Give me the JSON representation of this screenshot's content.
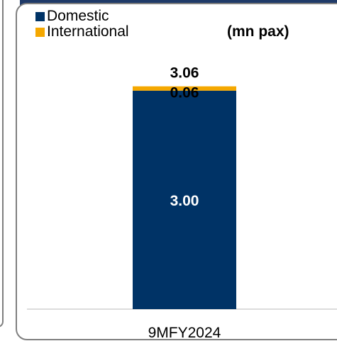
{
  "chart_data": {
    "type": "bar",
    "stacked": true,
    "categories": [
      "9MFY2024"
    ],
    "series": [
      {
        "name": "Domestic",
        "values": [
          3.0
        ],
        "labels": [
          "3.00"
        ],
        "color": "#003366"
      },
      {
        "name": "International",
        "values": [
          0.06
        ],
        "labels": [
          "0.06"
        ],
        "color": "#f5a800"
      }
    ],
    "totals": [
      "3.06"
    ],
    "unit_label": "(mn pax)",
    "legend_position": "top-left",
    "grid": false
  }
}
